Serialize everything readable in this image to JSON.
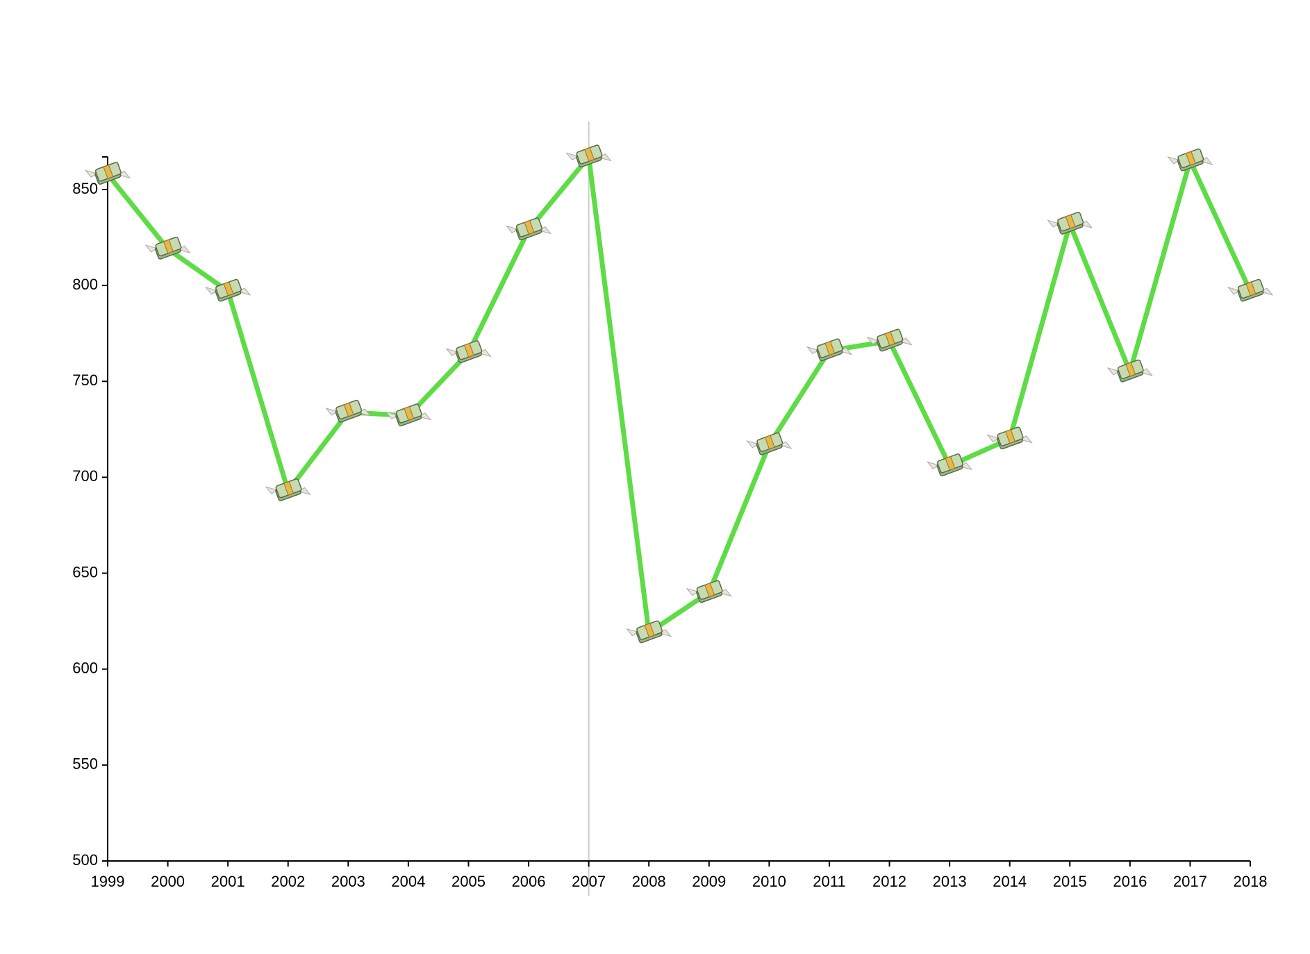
{
  "chart_data": {
    "type": "line",
    "x": [
      1999,
      2000,
      2001,
      2002,
      2003,
      2004,
      2005,
      2006,
      2007,
      2008,
      2009,
      2010,
      2011,
      2012,
      2013,
      2014,
      2015,
      2016,
      2017,
      2018
    ],
    "series": [
      {
        "color": "#5ddc45",
        "values": [
          858,
          819,
          797,
          693,
          734,
          732,
          765,
          829,
          867,
          619,
          640,
          717,
          766,
          771,
          706,
          720,
          832,
          755,
          865,
          797
        ]
      }
    ],
    "xlim": [
      1999,
      2018
    ],
    "xticks": [
      1999,
      2000,
      2001,
      2002,
      2003,
      2004,
      2005,
      2006,
      2007,
      2008,
      2009,
      2010,
      2011,
      2012,
      2013,
      2014,
      2015,
      2016,
      2017,
      2018
    ],
    "ylim": [
      500,
      867
    ],
    "yticks": [
      500,
      550,
      600,
      650,
      700,
      750,
      800,
      850
    ],
    "highlight_x": 2007
  }
}
